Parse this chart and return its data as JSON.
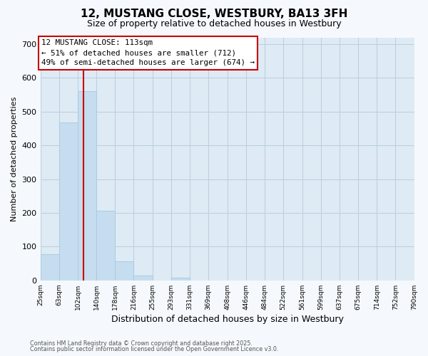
{
  "title": "12, MUSTANG CLOSE, WESTBURY, BA13 3FH",
  "subtitle": "Size of property relative to detached houses in Westbury",
  "xlabel": "Distribution of detached houses by size in Westbury",
  "ylabel": "Number of detached properties",
  "bar_color": "#c5ddef",
  "bar_edgecolor": "#a8c8e0",
  "vline_x": 113,
  "vline_color": "#cc0000",
  "bin_edges": [
    25,
    63,
    102,
    140,
    178,
    216,
    255,
    293,
    331,
    369,
    408,
    446,
    484,
    522,
    561,
    599,
    637,
    675,
    714,
    752,
    790
  ],
  "bar_heights": [
    78,
    467,
    560,
    207,
    56,
    14,
    0,
    8,
    0,
    0,
    0,
    0,
    0,
    0,
    0,
    0,
    0,
    0,
    0,
    0
  ],
  "ylim": [
    0,
    720
  ],
  "yticks": [
    0,
    100,
    200,
    300,
    400,
    500,
    600,
    700
  ],
  "annotation_line1": "12 MUSTANG CLOSE: 113sqm",
  "annotation_line2": "← 51% of detached houses are smaller (712)",
  "annotation_line3": "49% of semi-detached houses are larger (674) →",
  "annotation_box_color": "white",
  "annotation_box_edgecolor": "#cc0000",
  "footnote1": "Contains HM Land Registry data © Crown copyright and database right 2025.",
  "footnote2": "Contains public sector information licensed under the Open Government Licence v3.0.",
  "figure_bg": "#f5f9fd",
  "plot_bg": "#deeaf4",
  "grid_color": "#b8cfe0",
  "tick_labels": [
    "25sqm",
    "63sqm",
    "102sqm",
    "140sqm",
    "178sqm",
    "216sqm",
    "255sqm",
    "293sqm",
    "331sqm",
    "369sqm",
    "408sqm",
    "446sqm",
    "484sqm",
    "522sqm",
    "561sqm",
    "599sqm",
    "637sqm",
    "675sqm",
    "714sqm",
    "752sqm",
    "790sqm"
  ]
}
